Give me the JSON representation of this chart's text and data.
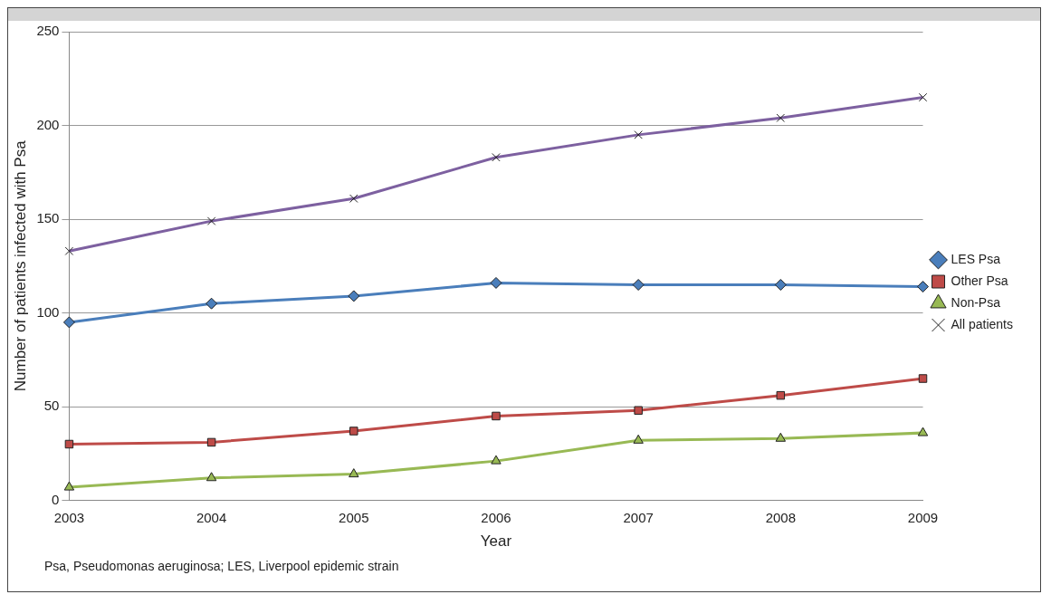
{
  "chart_data": {
    "type": "line",
    "xlabel": "Year",
    "ylabel": "Number of patients infected with Psa",
    "categories": [
      "2003",
      "2004",
      "2005",
      "2006",
      "2007",
      "2008",
      "2009"
    ],
    "series": [
      {
        "name": "LES Psa",
        "color": "#4a7ebb",
        "marker": "diamond",
        "values": [
          95,
          105,
          109,
          116,
          115,
          115,
          114
        ]
      },
      {
        "name": "Other Psa",
        "color": "#be4b48",
        "marker": "square",
        "values": [
          30,
          31,
          37,
          45,
          48,
          56,
          65
        ]
      },
      {
        "name": "Non-Psa",
        "color": "#98b954",
        "marker": "triangle",
        "values": [
          7,
          12,
          14,
          21,
          32,
          33,
          36
        ]
      },
      {
        "name": "All patients",
        "color": "#7d60a0",
        "marker": "cross",
        "values": [
          133,
          149,
          161,
          183,
          195,
          204,
          215
        ]
      }
    ],
    "ylim": [
      0,
      250
    ],
    "yticks": [
      0,
      50,
      100,
      150,
      200,
      250
    ],
    "grid": "y",
    "legend": "right",
    "line_style": "solid",
    "annotations": [
      "Psa, Pseudomonas aeruginosa; LES, Liverpool epidemic strain"
    ]
  }
}
